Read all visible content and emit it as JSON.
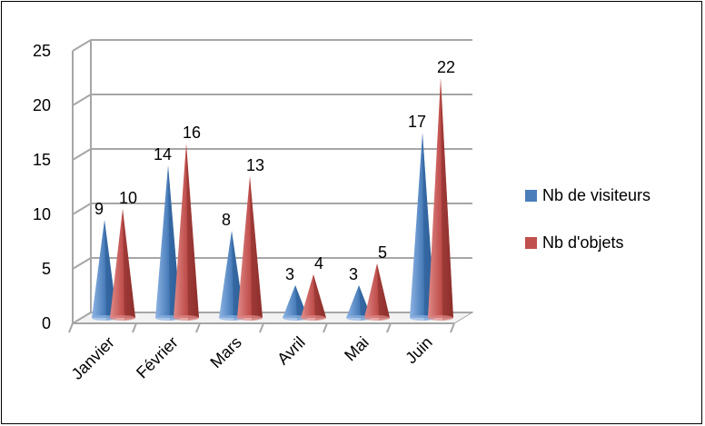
{
  "chart_data": {
    "type": "bar",
    "style": "3d-cone",
    "categories": [
      "Janvier",
      "Février",
      "Mars",
      "Avril",
      "Mai",
      "Juin"
    ],
    "series": [
      {
        "name": "Nb de visiteurs",
        "color": "#4a7ebb",
        "values": [
          9,
          14,
          8,
          3,
          3,
          17
        ]
      },
      {
        "name": "Nb d'objets",
        "color": "#c0504d",
        "values": [
          10,
          16,
          13,
          4,
          5,
          22
        ]
      }
    ],
    "yticks": [
      "0",
      "5",
      "10",
      "15",
      "20",
      "25"
    ],
    "ylim": [
      0,
      25
    ],
    "grid": true,
    "legend_position": "right",
    "title": "",
    "xlabel": "",
    "ylabel": ""
  }
}
